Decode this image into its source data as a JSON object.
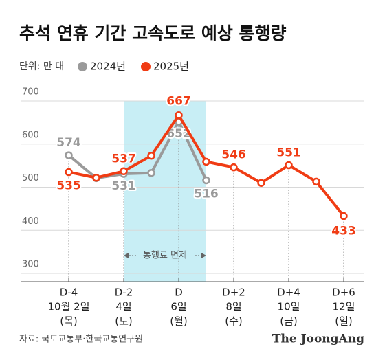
{
  "chart_data": {
    "type": "line",
    "title": "추석 연휴 기간 고속도로 예상 통행량",
    "unit": "단위: 만 대",
    "categories": [
      [
        "D-4",
        "10월 2일",
        "(목)"
      ],
      null,
      [
        "D-2",
        "4일",
        "(토)"
      ],
      null,
      [
        "D",
        "6일",
        "(월)"
      ],
      null,
      [
        "D+2",
        "8일",
        "(수)"
      ],
      null,
      [
        "D+4",
        "10일",
        "(금)"
      ],
      null,
      [
        "D+6",
        "12일",
        "(일)"
      ]
    ],
    "series": [
      {
        "name": "2024년",
        "color": "#9a9a9a",
        "values": [
          574,
          521,
          531,
          533,
          652,
          516,
          null,
          null,
          null,
          null,
          null
        ],
        "value_labels": [
          "574",
          null,
          "531",
          null,
          "652",
          "516",
          null,
          null,
          null,
          null,
          null
        ]
      },
      {
        "name": "2025년",
        "color": "#f03c14",
        "values": [
          535,
          522,
          537,
          573,
          667,
          559,
          546,
          510,
          551,
          513,
          433
        ],
        "value_labels": [
          "535",
          null,
          "537",
          null,
          "667",
          null,
          "546",
          null,
          "551",
          null,
          "433"
        ]
      }
    ],
    "ylim": [
      300,
      700
    ],
    "yticks": [
      300,
      400,
      500,
      600,
      700
    ],
    "grid": true,
    "highlight": {
      "label": "통행료 면제",
      "color": "#c8eef5"
    },
    "source": "자료: 국토교통부·한국교통연구원",
    "brand": "The JoongAng"
  }
}
